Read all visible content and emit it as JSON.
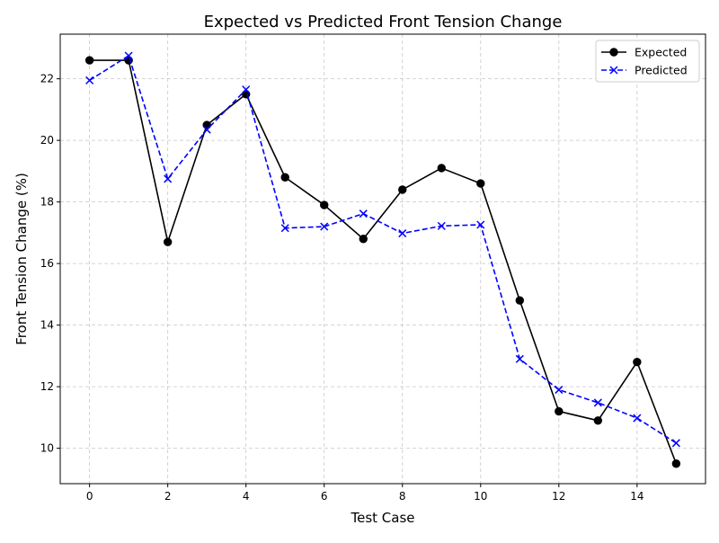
{
  "chart_data": {
    "type": "line",
    "title": "Expected vs Predicted Front Tension Change",
    "xlabel": "Test Case",
    "ylabel": "Front Tension Change (%)",
    "x": [
      0,
      1,
      2,
      3,
      4,
      5,
      6,
      7,
      8,
      9,
      10,
      11,
      12,
      13,
      14,
      15
    ],
    "xlim": [
      -0.75,
      15.75
    ],
    "ylim": [
      8.85,
      23.45
    ],
    "xticks": [
      0,
      2,
      4,
      6,
      8,
      10,
      12,
      14
    ],
    "yticks": [
      10,
      12,
      14,
      16,
      18,
      20,
      22
    ],
    "grid": true,
    "legend_position": "top-right",
    "series": [
      {
        "name": "Expected",
        "color": "#000000",
        "line_style": "solid",
        "marker": "circle",
        "values": [
          22.6,
          22.6,
          16.7,
          20.5,
          21.5,
          18.8,
          17.9,
          16.8,
          18.4,
          19.1,
          18.6,
          14.8,
          11.2,
          10.9,
          12.8,
          9.5
        ]
      },
      {
        "name": "Predicted",
        "color": "#0000ff",
        "line_style": "dashed",
        "marker": "x",
        "values": [
          21.95,
          22.75,
          18.75,
          20.35,
          21.65,
          17.15,
          17.2,
          17.62,
          16.98,
          17.22,
          17.26,
          12.9,
          11.9,
          11.48,
          10.98,
          10.17
        ]
      }
    ]
  }
}
